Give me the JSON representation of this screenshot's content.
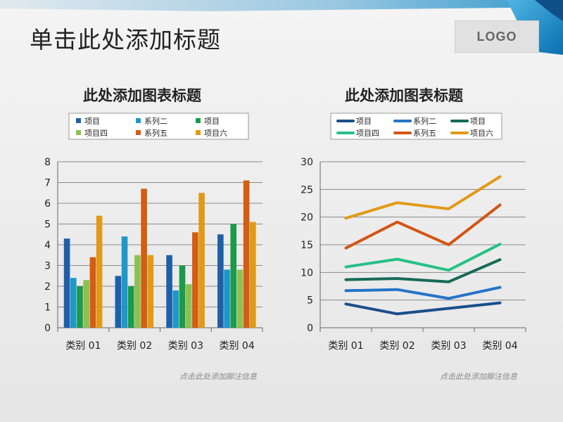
{
  "slide": {
    "title": "单击此处添加标题",
    "logo": "LOGO"
  },
  "chart_data": [
    {
      "type": "bar",
      "title": "此处添加图表标题",
      "categories": [
        "类别 01",
        "类别 02",
        "类别 03",
        "类别 04"
      ],
      "series": [
        {
          "name": "项目",
          "color": "#1f5fa8",
          "values": [
            4.3,
            2.5,
            3.5,
            4.5
          ]
        },
        {
          "name": "系列二",
          "color": "#1e98c8",
          "values": [
            2.4,
            4.4,
            1.8,
            2.8
          ]
        },
        {
          "name": "项目",
          "color": "#1b9a4a",
          "values": [
            2.0,
            2.0,
            3.0,
            5.0
          ]
        },
        {
          "name": "项目四",
          "color": "#8cc152",
          "values": [
            2.3,
            3.5,
            2.1,
            2.8
          ]
        },
        {
          "name": "系列五",
          "color": "#d35d10",
          "values": [
            3.4,
            6.7,
            4.6,
            7.1
          ]
        },
        {
          "name": "项目六",
          "color": "#e19a17",
          "values": [
            5.4,
            3.5,
            6.5,
            5.1
          ]
        }
      ],
      "ylim": [
        0,
        8
      ],
      "yticks": [
        0,
        1,
        2,
        3,
        4,
        5,
        6,
        7,
        8
      ],
      "grid": true,
      "legend": "top",
      "footnote": "点击此处添加脚注信息"
    },
    {
      "type": "line",
      "title": "此处添加图表标题",
      "categories": [
        "类别 01",
        "类别 02",
        "类别 03",
        "类别 04"
      ],
      "series": [
        {
          "name": "项目",
          "color": "#1a4f8a",
          "values": [
            4.3,
            2.5,
            3.5,
            4.5
          ]
        },
        {
          "name": "系列二",
          "color": "#2474c6",
          "values": [
            6.7,
            6.9,
            5.3,
            7.3
          ]
        },
        {
          "name": "项目",
          "color": "#17695a",
          "values": [
            8.7,
            8.9,
            8.3,
            12.3
          ]
        },
        {
          "name": "项目四",
          "color": "#27c08a",
          "values": [
            11.0,
            12.4,
            10.4,
            15.1
          ]
        },
        {
          "name": "系列五",
          "color": "#d45514",
          "values": [
            14.4,
            19.1,
            15.0,
            22.2
          ]
        },
        {
          "name": "项目六",
          "color": "#e19a17",
          "values": [
            19.8,
            22.6,
            21.5,
            27.3
          ]
        }
      ],
      "ylim": [
        0,
        30
      ],
      "yticks": [
        0,
        5,
        10,
        15,
        20,
        25,
        30
      ],
      "grid": true,
      "legend": "top",
      "footnote": "点击此处添加脚注信息"
    }
  ]
}
